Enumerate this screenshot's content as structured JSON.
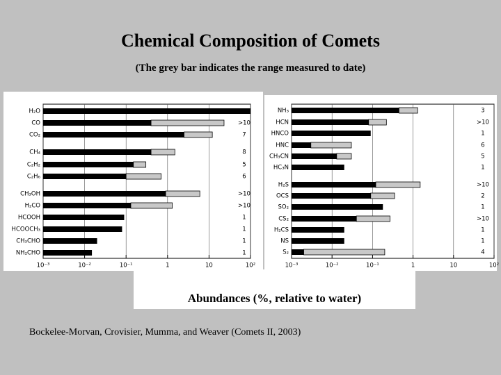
{
  "title": "Chemical Composition of Comets",
  "subtitle": "(The grey bar indicates the range measured to date)",
  "axis_label": "Abundances (%, relative to water)",
  "citation": "Bockelee-Morvan, Crovisier, Mumma, and Weaver (Comets II, 2003)",
  "chart_data": [
    {
      "type": "bar",
      "orientation": "horizontal",
      "log_x": true,
      "grid": true,
      "color": "#000000",
      "range_color": "#c8c8c8",
      "categories": [
        "H₂O",
        "CO",
        "CO₂",
        "CH₄",
        "C₂H₂",
        "C₂H₆",
        "CH₃OH",
        "H₂CO",
        "HCOOH",
        "HCOOCH₃",
        "CH₃CHO",
        "NH₂CHO"
      ],
      "values": [
        100,
        0.4,
        2.5,
        0.4,
        0.15,
        0.1,
        0.9,
        0.13,
        0.09,
        0.08,
        0.02,
        0.015
      ],
      "upper": [
        null,
        23,
        12,
        1.5,
        0.3,
        0.7,
        6,
        1.3,
        null,
        null,
        null,
        null
      ],
      "annotations": [
        null,
        ">10",
        "7",
        "8",
        "5",
        "6",
        ">10",
        ">10",
        "1",
        "1",
        "1",
        "1"
      ],
      "xlim": [
        0.001,
        100
      ],
      "xticks": [
        {
          "value": 0.001,
          "label": "10⁻³"
        },
        {
          "value": 0.01,
          "label": "10⁻²"
        },
        {
          "value": 0.1,
          "label": "10⁻¹"
        },
        1,
        10,
        {
          "value": 100,
          "label": "10²"
        }
      ]
    },
    {
      "type": "bar",
      "orientation": "horizontal",
      "log_x": true,
      "grid": true,
      "color": "#000000",
      "range_color": "#c8c8c8",
      "categories": [
        "NH₃",
        "HCN",
        "HNCO",
        "HNC",
        "CH₃CN",
        "HC₃N",
        "H₂S",
        "OCS",
        "SO₂",
        "CS₂",
        "H₂CS",
        "NS",
        "S₂"
      ],
      "values": [
        0.45,
        0.08,
        0.09,
        0.003,
        0.013,
        0.02,
        0.12,
        0.09,
        0.18,
        0.04,
        0.02,
        0.02,
        0.002
      ],
      "upper": [
        1.3,
        0.22,
        null,
        0.03,
        0.03,
        null,
        1.5,
        0.35,
        null,
        0.27,
        null,
        null,
        0.2
      ],
      "annotations": [
        "3",
        ">10",
        "1",
        "6",
        "5",
        "1",
        ">10",
        "2",
        "1",
        ">10",
        "1",
        "1",
        "4"
      ],
      "xlim": [
        0.001,
        100
      ],
      "xticks": [
        {
          "value": 0.001,
          "label": "10⁻³"
        },
        {
          "value": 0.01,
          "label": "10⁻²"
        },
        {
          "value": 0.1,
          "label": "10⁻¹"
        },
        1,
        10,
        {
          "value": 100,
          "label": "10²"
        }
      ]
    }
  ]
}
